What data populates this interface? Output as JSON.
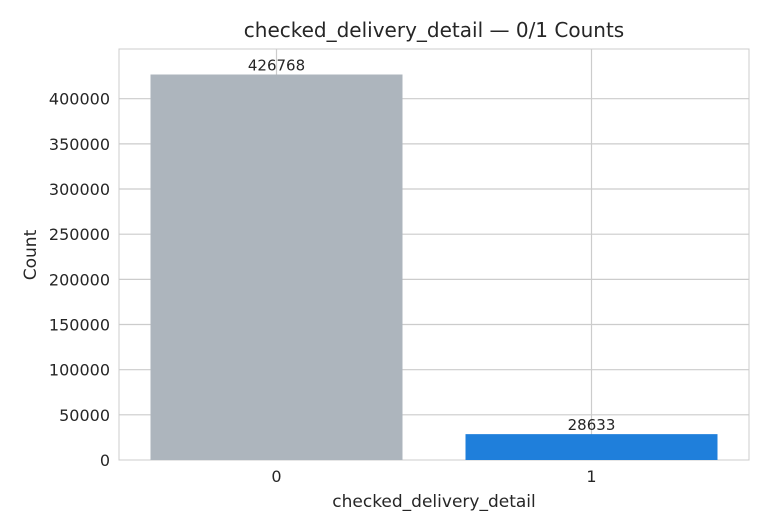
{
  "chart_data": {
    "type": "bar",
    "title": "checked_delivery_detail — 0/1 Counts",
    "xlabel": "checked_delivery_detail",
    "ylabel": "Count",
    "categories": [
      "0",
      "1"
    ],
    "values": [
      426768,
      28633
    ],
    "data_labels": [
      "426768",
      "28633"
    ],
    "ylim": [
      0,
      455000
    ],
    "yticks": [
      0,
      50000,
      100000,
      150000,
      200000,
      250000,
      300000,
      350000,
      400000
    ],
    "grid": true,
    "legend": "none",
    "colors": [
      "#adb5bd",
      "#1f7fdb"
    ]
  }
}
